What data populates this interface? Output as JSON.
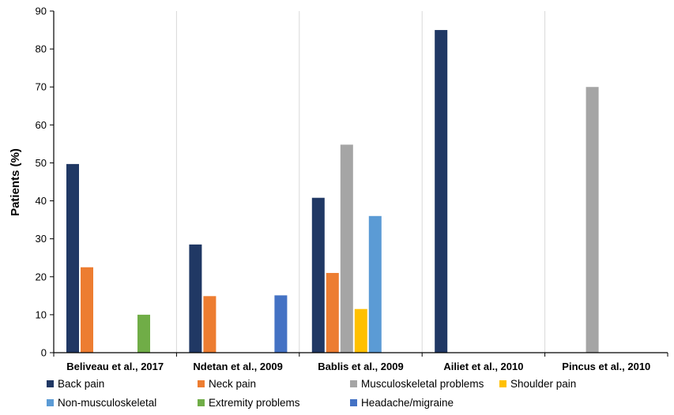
{
  "chart_data": {
    "type": "bar",
    "ylabel": "Patients (%)",
    "xlabel": "",
    "ylim": [
      0,
      90
    ],
    "yticks": [
      0,
      10,
      20,
      30,
      40,
      50,
      60,
      70,
      80,
      90
    ],
    "grid": "vertical category separators",
    "legend_position": "bottom",
    "categories": [
      "Beliveau et al., 2017",
      "Ndetan et al., 2009",
      "Bablis et al., 2009",
      "Ailiet et al., 2010",
      "Pincus et al., 2010"
    ],
    "series": [
      {
        "name": "Back pain",
        "color": "#203864",
        "values": [
          49.7,
          28.5,
          40.8,
          85,
          null
        ]
      },
      {
        "name": "Neck pain",
        "color": "#ED7D31",
        "values": [
          22.5,
          14.9,
          21,
          null,
          null
        ]
      },
      {
        "name": "Musculoskeletal problems",
        "color": "#A5A5A5",
        "values": [
          null,
          null,
          54.8,
          null,
          70
        ]
      },
      {
        "name": "Shoulder pain",
        "color": "#FFC000",
        "values": [
          null,
          null,
          11.5,
          null,
          null
        ]
      },
      {
        "name": "Non-musculoskeletal",
        "color": "#5B9BD5",
        "values": [
          null,
          null,
          36,
          null,
          null
        ]
      },
      {
        "name": "Extremity problems",
        "color": "#70AD47",
        "values": [
          10,
          null,
          null,
          null,
          null
        ]
      },
      {
        "name": "Headache/migraine",
        "color": "#4472C4",
        "values": [
          null,
          15.1,
          null,
          null,
          null
        ]
      }
    ]
  }
}
